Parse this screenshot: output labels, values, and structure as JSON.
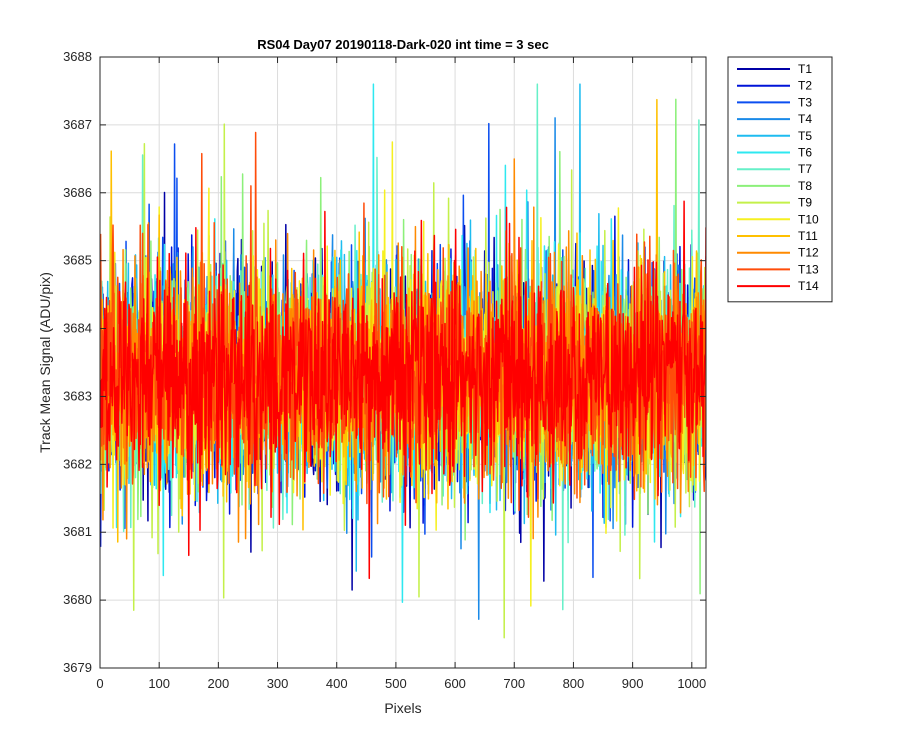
{
  "chart_data": {
    "type": "line",
    "title": "RS04 Day07 20190118-Dark-020 int time = 3 sec",
    "xlabel": "Pixels",
    "ylabel": "Track Mean Signal (ADU/pix)",
    "xlim": [
      0,
      1024
    ],
    "ylim": [
      3679,
      3688
    ],
    "xticks": [
      0,
      100,
      200,
      300,
      400,
      500,
      600,
      700,
      800,
      900,
      1000
    ],
    "yticks": [
      3679,
      3680,
      3681,
      3682,
      3683,
      3684,
      3685,
      3686,
      3687,
      3688
    ],
    "grid": true,
    "legend_position": "outside-top-right",
    "x_range_note": "pixels 1 to 1024, one point per pixel per series",
    "series": [
      {
        "name": "T1",
        "color": "#0000a6",
        "mean": 3683.3,
        "spread": 0.75
      },
      {
        "name": "T2",
        "color": "#0014d8",
        "mean": 3683.3,
        "spread": 0.75
      },
      {
        "name": "T3",
        "color": "#0b4ef0",
        "mean": 3683.3,
        "spread": 0.75
      },
      {
        "name": "T4",
        "color": "#1a8ae8",
        "mean": 3683.3,
        "spread": 0.75
      },
      {
        "name": "T5",
        "color": "#1ebcf0",
        "mean": 3683.3,
        "spread": 0.75
      },
      {
        "name": "T6",
        "color": "#2ee8f0",
        "mean": 3683.3,
        "spread": 0.75
      },
      {
        "name": "T7",
        "color": "#66f0c8",
        "mean": 3683.3,
        "spread": 0.75
      },
      {
        "name": "T8",
        "color": "#8cf07a",
        "mean": 3683.3,
        "spread": 0.75
      },
      {
        "name": "T9",
        "color": "#c4f04a",
        "mean": 3683.3,
        "spread": 0.75
      },
      {
        "name": "T10",
        "color": "#f6f020",
        "mean": 3683.3,
        "spread": 0.75
      },
      {
        "name": "T11",
        "color": "#ffc000",
        "mean": 3683.3,
        "spread": 0.75
      },
      {
        "name": "T12",
        "color": "#ff8a00",
        "mean": 3683.3,
        "spread": 0.75
      },
      {
        "name": "T13",
        "color": "#ff4c0a",
        "mean": 3683.3,
        "spread": 0.75
      },
      {
        "name": "T14",
        "color": "#ff0000",
        "mean": 3683.3,
        "spread": 0.75
      }
    ]
  }
}
